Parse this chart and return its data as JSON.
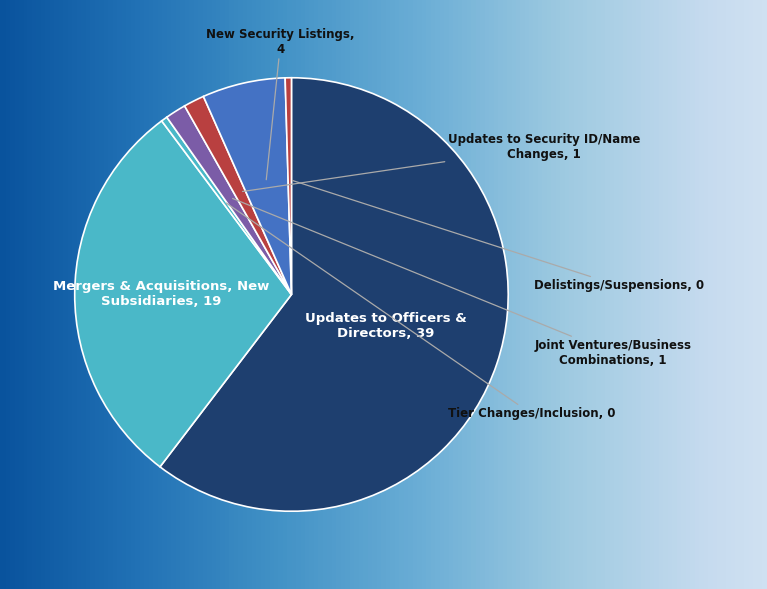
{
  "slices": [
    {
      "label": "Updates to Officers &\nDirectors, 39",
      "value": 39,
      "color": "#1e3f6f",
      "label_internal": true
    },
    {
      "label": "Mergers & Acquisitions, New\nSubsidiaries, 19",
      "value": 19,
      "color": "#4ab8c8",
      "label_internal": true
    },
    {
      "label": "Tier Changes/Inclusion, 0",
      "value": 0.3,
      "color": "#4ab8c8",
      "label_internal": false
    },
    {
      "label": "Joint Ventures/Business\nCombinations, 1",
      "value": 1,
      "color": "#7b5ca7",
      "label_internal": false
    },
    {
      "label": "Updates to Security ID/Name\nChanges, 1",
      "value": 1,
      "color": "#b94040",
      "label_internal": false
    },
    {
      "label": "New Security Listings,\n4",
      "value": 4,
      "color": "#4472c4",
      "label_internal": false
    },
    {
      "label": "Delistings/Suspensions, 0",
      "value": 0.3,
      "color": "#b94040",
      "label_internal": false
    }
  ],
  "startangle": 90,
  "internal_label_color": "white",
  "external_label_color": "#111111",
  "edge_color": "white",
  "edge_linewidth": 1.2,
  "bg_color_top": "#e8eef5",
  "bg_color_bottom": "#b4c8dc",
  "fig_bg": "#c2d4e4"
}
